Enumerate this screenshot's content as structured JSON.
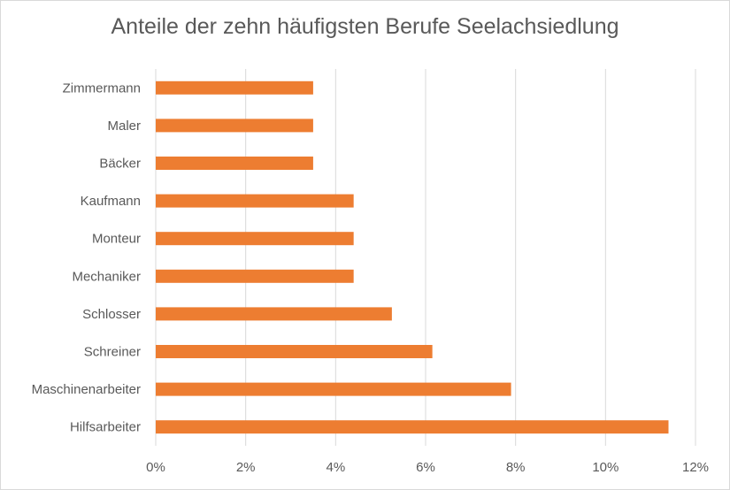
{
  "chart_data": {
    "type": "bar",
    "orientation": "horizontal",
    "title": "Anteile der zehn häufigsten Berufe Seelachsiedlung",
    "xlabel": "",
    "ylabel": "",
    "xlim": [
      0,
      12
    ],
    "x_ticks": [
      "0%",
      "2%",
      "4%",
      "6%",
      "8%",
      "10%",
      "12%"
    ],
    "grid": true,
    "legend": "none",
    "bar_color": "#ED7D31",
    "categories": [
      "Zimmermann",
      "Maler",
      "Bäcker",
      "Kaufmann",
      "Monteur",
      "Mechaniker",
      "Schlosser",
      "Schreiner",
      "Maschinenarbeiter",
      "Hilfsarbeiter"
    ],
    "values": [
      3.5,
      3.5,
      3.5,
      4.4,
      4.4,
      4.4,
      5.25,
      6.15,
      7.9,
      11.4
    ]
  }
}
